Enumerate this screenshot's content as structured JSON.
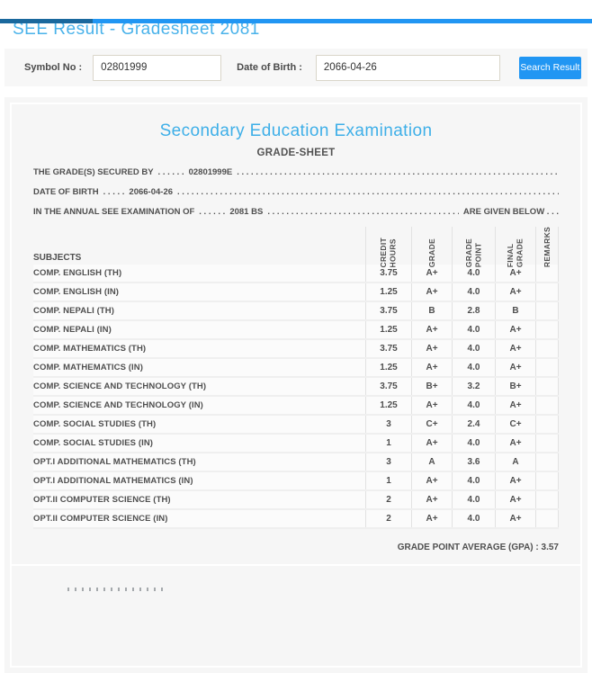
{
  "header": {
    "title": "SEE Result - Gradesheet 2081",
    "topbar_left_color": "#1a689d",
    "topbar_right_color": "#2196f3"
  },
  "search": {
    "symbol_label": "Symbol No :",
    "symbol_value": "02801999",
    "dob_label": "Date of Birth :",
    "dob_value": "2066-04-26",
    "button_label": "Search Result",
    "button_color": "#2196f3"
  },
  "sheet": {
    "exam_title": "Secondary Education Examination",
    "exam_title_color": "#3eafe8",
    "sheet_title": "GRADE-SHEET",
    "line1_prefix": "THE GRADE(S) SECURED BY",
    "line1_sep": ". . . . . .",
    "line1_value": "02801999E",
    "line2_prefix": "DATE OF BIRTH",
    "line2_sep": ". . . . .",
    "line2_value": "2066-04-26",
    "line3_prefix": "IN THE ANNUAL SEE EXAMINATION OF",
    "line3_sep": ". . . . . .",
    "line3_value": "2081 BS",
    "line3_suffix": "ARE GIVEN BELOW . . .",
    "dots_fill": ". . . . . . . . . . . . . . . . . . . . . . . . . . . . . . . . . . . . . . . . . . . . . . . . . . . . . . . . . . . . . . . . . . . . . . . . . . . . . . . . . . . . . . . . . . . . . . . . . . . .",
    "gpa_label": "GRADE POINT AVERAGE (GPA) : ",
    "gpa_value": "3.57"
  },
  "table": {
    "headers": {
      "subjects": "SUBJECTS",
      "credit": "CREDIT\nHOURS",
      "grade": "GRADE",
      "point": "GRADE\nPOINT",
      "final": "FINAL\nGRADE",
      "remarks": "REMARKS"
    },
    "rows": [
      {
        "subject": "COMP. ENGLISH (TH)",
        "credit": "3.75",
        "grade": "A+",
        "point": "4.0",
        "final": "A+",
        "remarks": ""
      },
      {
        "subject": "COMP. ENGLISH (IN)",
        "credit": "1.25",
        "grade": "A+",
        "point": "4.0",
        "final": "A+",
        "remarks": ""
      },
      {
        "subject": "COMP. NEPALI (TH)",
        "credit": "3.75",
        "grade": "B",
        "point": "2.8",
        "final": "B",
        "remarks": ""
      },
      {
        "subject": "COMP. NEPALI (IN)",
        "credit": "1.25",
        "grade": "A+",
        "point": "4.0",
        "final": "A+",
        "remarks": ""
      },
      {
        "subject": "COMP. MATHEMATICS (TH)",
        "credit": "3.75",
        "grade": "A+",
        "point": "4.0",
        "final": "A+",
        "remarks": ""
      },
      {
        "subject": "COMP. MATHEMATICS (IN)",
        "credit": "1.25",
        "grade": "A+",
        "point": "4.0",
        "final": "A+",
        "remarks": ""
      },
      {
        "subject": "COMP. SCIENCE AND TECHNOLOGY (TH)",
        "credit": "3.75",
        "grade": "B+",
        "point": "3.2",
        "final": "B+",
        "remarks": ""
      },
      {
        "subject": "COMP. SCIENCE AND TECHNOLOGY (IN)",
        "credit": "1.25",
        "grade": "A+",
        "point": "4.0",
        "final": "A+",
        "remarks": ""
      },
      {
        "subject": "COMP. SOCIAL STUDIES (TH)",
        "credit": "3",
        "grade": "C+",
        "point": "2.4",
        "final": "C+",
        "remarks": ""
      },
      {
        "subject": "COMP. SOCIAL STUDIES (IN)",
        "credit": "1",
        "grade": "A+",
        "point": "4.0",
        "final": "A+",
        "remarks": ""
      },
      {
        "subject": "OPT.I ADDITIONAL MATHEMATICS (TH)",
        "credit": "3",
        "grade": "A",
        "point": "3.6",
        "final": "A",
        "remarks": ""
      },
      {
        "subject": "OPT.I ADDITIONAL MATHEMATICS (IN)",
        "credit": "1",
        "grade": "A+",
        "point": "4.0",
        "final": "A+",
        "remarks": ""
      },
      {
        "subject": "OPT.II COMPUTER SCIENCE (TH)",
        "credit": "2",
        "grade": "A+",
        "point": "4.0",
        "final": "A+",
        "remarks": ""
      },
      {
        "subject": "OPT.II COMPUTER SCIENCE (IN)",
        "credit": "2",
        "grade": "A+",
        "point": "4.0",
        "final": "A+",
        "remarks": ""
      }
    ]
  }
}
